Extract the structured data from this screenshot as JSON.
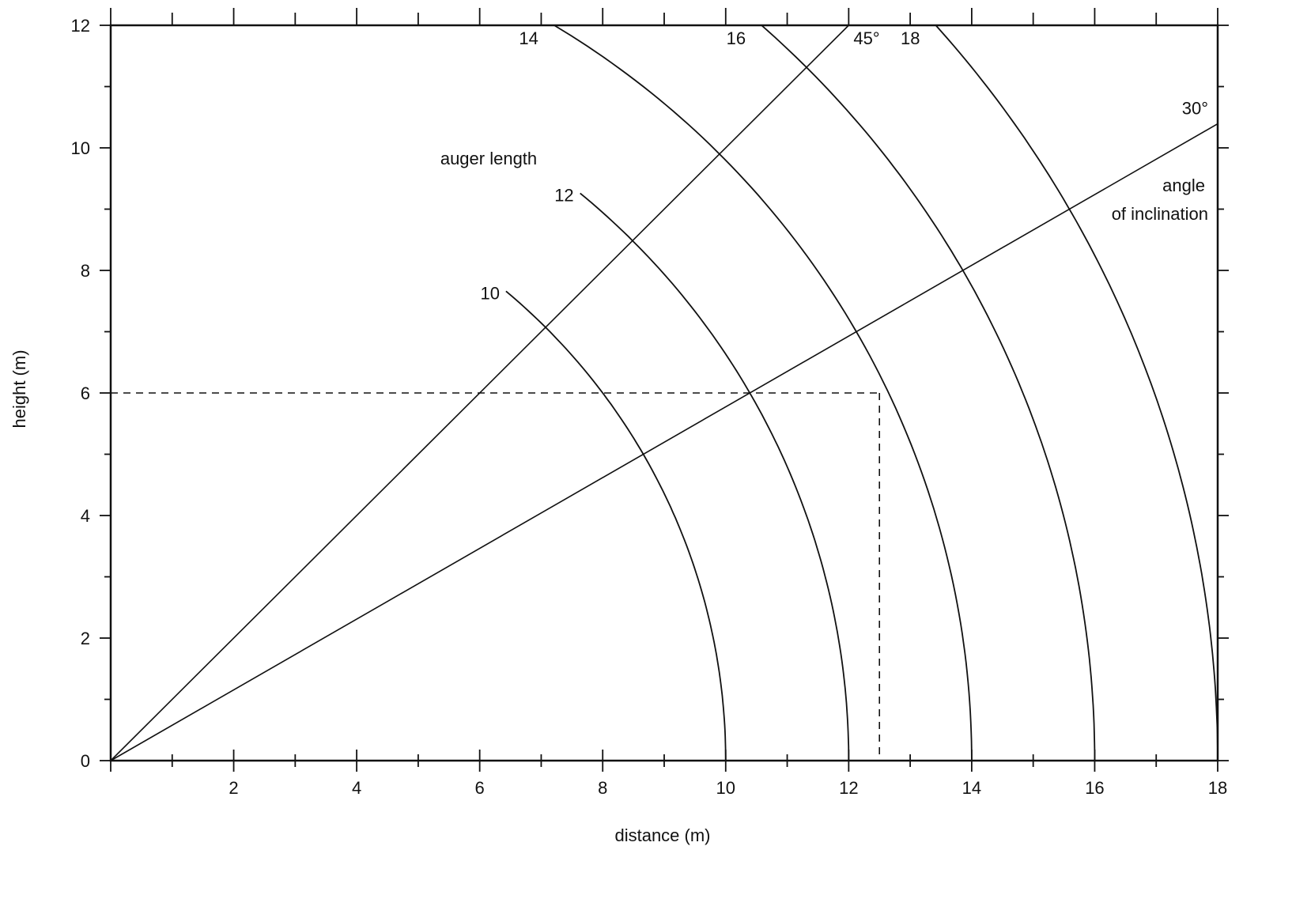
{
  "chart_data": {
    "type": "line",
    "xlabel": "distance (m)",
    "ylabel": "height (m)",
    "xlim": [
      0,
      18
    ],
    "ylim": [
      0,
      12
    ],
    "x_tick_labels": [
      "2",
      "4",
      "6",
      "8",
      "10",
      "12",
      "14",
      "16",
      "18"
    ],
    "y_tick_labels": [
      "0",
      "2",
      "4",
      "6",
      "8",
      "10",
      "12"
    ],
    "x_tick_values": [
      2,
      4,
      6,
      8,
      10,
      12,
      14,
      16,
      18
    ],
    "y_tick_values": [
      0,
      2,
      4,
      6,
      8,
      10,
      12
    ],
    "minor_tick_step": 1,
    "grid": false,
    "auger_length_title": "auger length",
    "auger_lengths": [
      {
        "label": "10",
        "radius": 10
      },
      {
        "label": "12",
        "radius": 12
      },
      {
        "label": "14",
        "radius": 14
      },
      {
        "label": "16",
        "radius": 16
      },
      {
        "label": "18",
        "radius": 18
      }
    ],
    "angle_title": [
      "angle",
      "of inclination"
    ],
    "angles": [
      {
        "label": "45°",
        "degrees": 45
      },
      {
        "label": "30°",
        "degrees": 30
      }
    ],
    "example_point": {
      "x": 12.5,
      "y": 6
    },
    "line_color": "#111111"
  }
}
